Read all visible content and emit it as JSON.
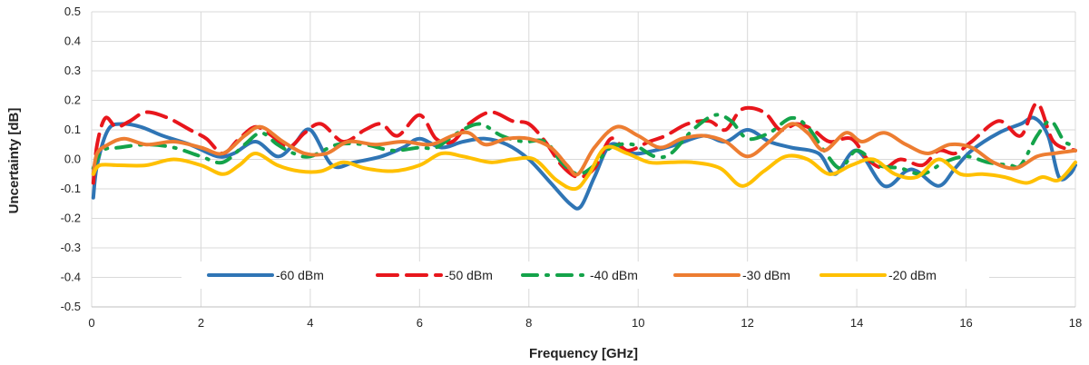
{
  "chart_data": {
    "type": "line",
    "title": "",
    "xlabel": "Frequency [GHz]",
    "ylabel": "Uncertainty [dB]",
    "xlim": [
      0,
      18
    ],
    "ylim": [
      -0.5,
      0.5
    ],
    "xticks": [
      0,
      2,
      4,
      6,
      8,
      10,
      12,
      14,
      16,
      18
    ],
    "xtick_labels": [
      "0",
      "2",
      "4",
      "6",
      "8",
      "10",
      "12",
      "14",
      "16",
      "18"
    ],
    "yticks": [
      0.5,
      0.4,
      0.3,
      0.2,
      0.1,
      0.0,
      -0.1,
      -0.2,
      -0.3,
      -0.4,
      -0.5
    ],
    "ytick_labels": [
      "0.5",
      "0.4",
      "0.3",
      "0.2",
      "0.1",
      "0.0",
      "-0.1",
      "-0.2",
      "-0.3",
      "-0.4",
      "-0.5"
    ],
    "grid": true,
    "legend_position": "bottom-inside",
    "series": [
      {
        "name": "-60 dBm",
        "color": "#2f75b5",
        "dash": "solid",
        "points": [
          [
            0.03,
            -0.13
          ],
          [
            0.1,
            -0.02
          ],
          [
            0.3,
            0.1
          ],
          [
            0.55,
            0.12
          ],
          [
            0.9,
            0.11
          ],
          [
            1.3,
            0.08
          ],
          [
            1.8,
            0.05
          ],
          [
            2.3,
            0.01
          ],
          [
            2.6,
            0.02
          ],
          [
            3.0,
            0.06
          ],
          [
            3.4,
            0.01
          ],
          [
            3.7,
            0.05
          ],
          [
            4.0,
            0.1
          ],
          [
            4.4,
            -0.02
          ],
          [
            4.8,
            -0.01
          ],
          [
            5.3,
            0.01
          ],
          [
            5.7,
            0.04
          ],
          [
            6.0,
            0.07
          ],
          [
            6.4,
            0.04
          ],
          [
            6.8,
            0.06
          ],
          [
            7.2,
            0.07
          ],
          [
            7.6,
            0.05
          ],
          [
            8.0,
            0.0
          ],
          [
            8.4,
            -0.08
          ],
          [
            8.75,
            -0.15
          ],
          [
            8.95,
            -0.16
          ],
          [
            9.2,
            -0.06
          ],
          [
            9.5,
            0.05
          ],
          [
            9.9,
            0.02
          ],
          [
            10.3,
            0.03
          ],
          [
            10.7,
            0.05
          ],
          [
            11.2,
            0.08
          ],
          [
            11.6,
            0.06
          ],
          [
            12.0,
            0.1
          ],
          [
            12.4,
            0.06
          ],
          [
            12.8,
            0.04
          ],
          [
            13.3,
            0.02
          ],
          [
            13.6,
            -0.05
          ],
          [
            14.0,
            0.03
          ],
          [
            14.5,
            -0.09
          ],
          [
            14.9,
            -0.04
          ],
          [
            15.1,
            -0.04
          ],
          [
            15.5,
            -0.09
          ],
          [
            15.8,
            -0.03
          ],
          [
            16.1,
            0.03
          ],
          [
            16.6,
            0.09
          ],
          [
            17.0,
            0.12
          ],
          [
            17.25,
            0.14
          ],
          [
            17.5,
            0.08
          ],
          [
            17.7,
            -0.06
          ],
          [
            17.9,
            -0.05
          ],
          [
            18.0,
            -0.02
          ]
        ]
      },
      {
        "name": "-50 dBm",
        "color": "#e8161c",
        "dash": "long",
        "points": [
          [
            0.03,
            -0.08
          ],
          [
            0.1,
            0.05
          ],
          [
            0.25,
            0.14
          ],
          [
            0.45,
            0.11
          ],
          [
            0.7,
            0.13
          ],
          [
            1.0,
            0.16
          ],
          [
            1.4,
            0.14
          ],
          [
            1.8,
            0.1
          ],
          [
            2.1,
            0.07
          ],
          [
            2.4,
            0.02
          ],
          [
            2.7,
            0.07
          ],
          [
            3.0,
            0.11
          ],
          [
            3.3,
            0.08
          ],
          [
            3.6,
            0.04
          ],
          [
            3.9,
            0.09
          ],
          [
            4.2,
            0.12
          ],
          [
            4.6,
            0.06
          ],
          [
            5.0,
            0.1
          ],
          [
            5.3,
            0.12
          ],
          [
            5.6,
            0.08
          ],
          [
            6.0,
            0.15
          ],
          [
            6.3,
            0.07
          ],
          [
            6.6,
            0.06
          ],
          [
            6.9,
            0.12
          ],
          [
            7.3,
            0.16
          ],
          [
            7.7,
            0.13
          ],
          [
            8.0,
            0.12
          ],
          [
            8.3,
            0.06
          ],
          [
            8.6,
            -0.02
          ],
          [
            8.9,
            -0.06
          ],
          [
            9.2,
            -0.03
          ],
          [
            9.5,
            0.07
          ],
          [
            9.8,
            0.03
          ],
          [
            10.2,
            0.06
          ],
          [
            10.5,
            0.08
          ],
          [
            10.9,
            0.12
          ],
          [
            11.3,
            0.13
          ],
          [
            11.6,
            0.1
          ],
          [
            11.9,
            0.17
          ],
          [
            12.3,
            0.16
          ],
          [
            12.6,
            0.1
          ],
          [
            12.9,
            0.12
          ],
          [
            13.2,
            0.1
          ],
          [
            13.5,
            0.06
          ],
          [
            13.9,
            0.07
          ],
          [
            14.2,
            0.0
          ],
          [
            14.5,
            -0.03
          ],
          [
            14.8,
            0.0
          ],
          [
            15.2,
            -0.02
          ],
          [
            15.5,
            0.03
          ],
          [
            15.8,
            0.02
          ],
          [
            16.1,
            0.06
          ],
          [
            16.6,
            0.13
          ],
          [
            17.0,
            0.08
          ],
          [
            17.3,
            0.19
          ],
          [
            17.6,
            0.06
          ],
          [
            18.0,
            0.03
          ]
        ]
      },
      {
        "name": "-40 dBm",
        "color": "#14a34a",
        "dash": "dashdot",
        "points": [
          [
            0.03,
            -0.03
          ],
          [
            0.2,
            0.03
          ],
          [
            0.5,
            0.04
          ],
          [
            1.0,
            0.05
          ],
          [
            1.5,
            0.04
          ],
          [
            2.0,
            0.01
          ],
          [
            2.4,
            -0.01
          ],
          [
            2.8,
            0.05
          ],
          [
            3.1,
            0.09
          ],
          [
            3.4,
            0.05
          ],
          [
            3.7,
            0.02
          ],
          [
            4.0,
            0.01
          ],
          [
            4.5,
            0.05
          ],
          [
            5.0,
            0.05
          ],
          [
            5.5,
            0.03
          ],
          [
            6.0,
            0.04
          ],
          [
            6.3,
            0.04
          ],
          [
            6.7,
            0.09
          ],
          [
            7.1,
            0.12
          ],
          [
            7.5,
            0.08
          ],
          [
            7.9,
            0.06
          ],
          [
            8.3,
            0.06
          ],
          [
            8.6,
            -0.01
          ],
          [
            8.9,
            -0.05
          ],
          [
            9.2,
            -0.02
          ],
          [
            9.5,
            0.04
          ],
          [
            9.9,
            0.05
          ],
          [
            10.3,
            0.01
          ],
          [
            10.6,
            0.02
          ],
          [
            11.0,
            0.1
          ],
          [
            11.4,
            0.15
          ],
          [
            11.7,
            0.13
          ],
          [
            12.0,
            0.07
          ],
          [
            12.4,
            0.09
          ],
          [
            12.8,
            0.14
          ],
          [
            13.1,
            0.11
          ],
          [
            13.4,
            0.03
          ],
          [
            13.7,
            -0.03
          ],
          [
            14.0,
            0.03
          ],
          [
            14.4,
            -0.02
          ],
          [
            14.8,
            -0.03
          ],
          [
            15.2,
            -0.05
          ],
          [
            15.6,
            -0.01
          ],
          [
            16.0,
            0.01
          ],
          [
            16.4,
            -0.01
          ],
          [
            16.8,
            -0.02
          ],
          [
            17.0,
            -0.02
          ],
          [
            17.3,
            0.08
          ],
          [
            17.55,
            0.13
          ],
          [
            17.8,
            0.06
          ],
          [
            18.0,
            0.05
          ]
        ]
      },
      {
        "name": "-30 dBm",
        "color": "#ed7d31",
        "dash": "solid",
        "points": [
          [
            0.03,
            -0.05
          ],
          [
            0.1,
            0.02
          ],
          [
            0.3,
            0.05
          ],
          [
            0.6,
            0.07
          ],
          [
            1.0,
            0.05
          ],
          [
            1.5,
            0.06
          ],
          [
            2.0,
            0.04
          ],
          [
            2.4,
            0.02
          ],
          [
            2.8,
            0.08
          ],
          [
            3.1,
            0.11
          ],
          [
            3.5,
            0.06
          ],
          [
            3.9,
            0.02
          ],
          [
            4.3,
            0.02
          ],
          [
            4.7,
            0.06
          ],
          [
            5.2,
            0.05
          ],
          [
            5.7,
            0.06
          ],
          [
            6.2,
            0.05
          ],
          [
            6.6,
            0.08
          ],
          [
            6.9,
            0.09
          ],
          [
            7.2,
            0.05
          ],
          [
            7.6,
            0.07
          ],
          [
            8.0,
            0.07
          ],
          [
            8.4,
            0.04
          ],
          [
            8.7,
            -0.02
          ],
          [
            8.9,
            -0.05
          ],
          [
            9.2,
            0.04
          ],
          [
            9.6,
            0.11
          ],
          [
            10.0,
            0.08
          ],
          [
            10.4,
            0.04
          ],
          [
            10.8,
            0.07
          ],
          [
            11.2,
            0.08
          ],
          [
            11.6,
            0.06
          ],
          [
            12.0,
            0.01
          ],
          [
            12.4,
            0.06
          ],
          [
            12.8,
            0.12
          ],
          [
            13.1,
            0.09
          ],
          [
            13.4,
            0.03
          ],
          [
            13.8,
            0.09
          ],
          [
            14.1,
            0.06
          ],
          [
            14.5,
            0.09
          ],
          [
            14.9,
            0.05
          ],
          [
            15.3,
            0.02
          ],
          [
            15.7,
            0.05
          ],
          [
            16.1,
            0.04
          ],
          [
            16.5,
            -0.01
          ],
          [
            16.9,
            -0.03
          ],
          [
            17.3,
            0.01
          ],
          [
            17.6,
            0.02
          ],
          [
            18.0,
            0.03
          ]
        ]
      },
      {
        "name": "-20 dBm",
        "color": "#ffc000",
        "dash": "solid",
        "points": [
          [
            0.03,
            -0.05
          ],
          [
            0.15,
            -0.02
          ],
          [
            0.5,
            -0.02
          ],
          [
            1.0,
            -0.02
          ],
          [
            1.5,
            0.0
          ],
          [
            2.0,
            -0.02
          ],
          [
            2.4,
            -0.05
          ],
          [
            2.7,
            -0.02
          ],
          [
            3.0,
            0.02
          ],
          [
            3.4,
            -0.02
          ],
          [
            3.8,
            -0.04
          ],
          [
            4.2,
            -0.04
          ],
          [
            4.6,
            -0.01
          ],
          [
            5.0,
            -0.03
          ],
          [
            5.5,
            -0.04
          ],
          [
            6.0,
            -0.02
          ],
          [
            6.4,
            0.02
          ],
          [
            6.8,
            0.01
          ],
          [
            7.3,
            -0.01
          ],
          [
            7.7,
            0.0
          ],
          [
            8.1,
            0.0
          ],
          [
            8.5,
            -0.07
          ],
          [
            8.85,
            -0.1
          ],
          [
            9.1,
            -0.05
          ],
          [
            9.4,
            0.04
          ],
          [
            9.8,
            0.02
          ],
          [
            10.2,
            -0.01
          ],
          [
            10.6,
            -0.01
          ],
          [
            11.0,
            -0.01
          ],
          [
            11.5,
            -0.03
          ],
          [
            11.9,
            -0.09
          ],
          [
            12.3,
            -0.04
          ],
          [
            12.7,
            0.01
          ],
          [
            13.1,
            0.0
          ],
          [
            13.5,
            -0.05
          ],
          [
            13.9,
            -0.02
          ],
          [
            14.3,
            0.0
          ],
          [
            14.7,
            -0.05
          ],
          [
            15.1,
            -0.06
          ],
          [
            15.5,
            0.0
          ],
          [
            15.9,
            -0.05
          ],
          [
            16.3,
            -0.05
          ],
          [
            16.7,
            -0.06
          ],
          [
            17.1,
            -0.08
          ],
          [
            17.4,
            -0.06
          ],
          [
            17.7,
            -0.07
          ],
          [
            18.0,
            -0.01
          ]
        ]
      }
    ]
  }
}
